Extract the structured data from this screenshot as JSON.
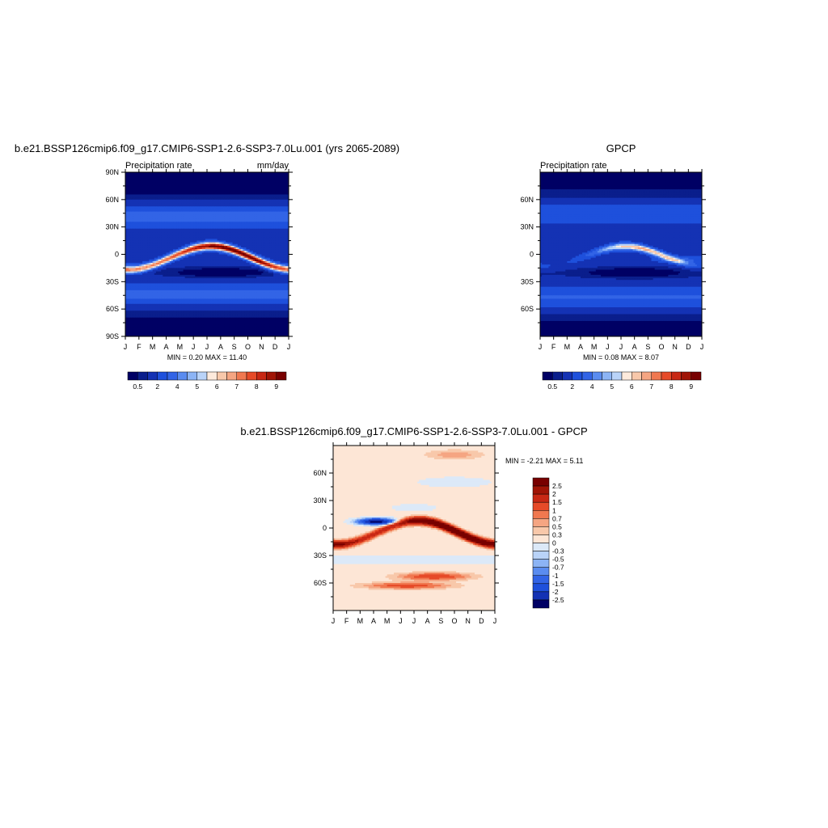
{
  "chart_data": [
    {
      "type": "heatmap",
      "title": "b.e21.BSSP126cmip6.f09_g17.CMIP6-SSP1-2.6-SSP3-7.0Lu.001 (yrs 2065-2089)",
      "left_label": "Precipitation rate",
      "right_label": "mm/day",
      "x_ticks": [
        "J",
        "F",
        "M",
        "A",
        "M",
        "J",
        "J",
        "A",
        "S",
        "O",
        "N",
        "D",
        "J"
      ],
      "y_ticks": [
        "90N",
        "60N",
        "30N",
        "0",
        "30S",
        "60S",
        "90S"
      ],
      "ylim": [
        -90,
        90
      ],
      "minmax": "MIN =   0.20 MAX =  11.40",
      "colorbar": {
        "labels": [
          "0.5",
          "2",
          "4",
          "5",
          "6",
          "7",
          "8",
          "9"
        ],
        "colors": [
          "#000064",
          "#0a1e8c",
          "#1432b4",
          "#1e50dc",
          "#3264e6",
          "#5a8cf0",
          "#8cb4f5",
          "#b9d3f8",
          "#fdeadc",
          "#f8c8aa",
          "#f5a582",
          "#f07850",
          "#e64a28",
          "#c82814",
          "#a01406",
          "#780000"
        ]
      },
      "model": "model"
    },
    {
      "type": "heatmap",
      "title": "GPCP",
      "left_label": "Precipitation rate",
      "x_ticks": [
        "J",
        "F",
        "M",
        "A",
        "M",
        "J",
        "J",
        "A",
        "S",
        "O",
        "N",
        "D",
        "J"
      ],
      "y_ticks": [
        "60N",
        "30N",
        "0",
        "30S",
        "60S"
      ],
      "ylim": [
        -90,
        90
      ],
      "minmax": "MIN =   0.08 MAX =   8.07",
      "colorbar": {
        "labels": [
          "0.5",
          "2",
          "4",
          "5",
          "6",
          "7",
          "8",
          "9"
        ],
        "colors": [
          "#000064",
          "#0a1e8c",
          "#1432b4",
          "#1e50dc",
          "#3264e6",
          "#5a8cf0",
          "#8cb4f5",
          "#b9d3f8",
          "#fdeadc",
          "#f8c8aa",
          "#f5a582",
          "#f07850",
          "#e64a28",
          "#c82814",
          "#a01406",
          "#780000"
        ]
      },
      "model": "obs"
    },
    {
      "type": "heatmap",
      "title": "b.e21.BSSP126cmip6.f09_g17.CMIP6-SSP1-2.6-SSP3-7.0Lu.001 - GPCP",
      "x_ticks": [
        "J",
        "F",
        "M",
        "A",
        "M",
        "J",
        "J",
        "A",
        "S",
        "O",
        "N",
        "D",
        "J"
      ],
      "y_ticks": [
        "60N",
        "30N",
        "0",
        "30S",
        "60S"
      ],
      "ylim": [
        -90,
        90
      ],
      "minmax": "MIN =  -2.21 MAX =   5.11",
      "colorbar": {
        "labels": [
          "2.5",
          "2",
          "1.5",
          "1",
          "0.7",
          "0.5",
          "0.3",
          "0",
          "-0.3",
          "-0.5",
          "-0.7",
          "-1",
          "-1.5",
          "-2",
          "-2.5"
        ],
        "colors": [
          "#780000",
          "#a01406",
          "#c82814",
          "#e64a28",
          "#f07850",
          "#f5a582",
          "#f8c8aa",
          "#fde6d6",
          "#dce9f8",
          "#b9d3f8",
          "#8cb4f5",
          "#5a8cf0",
          "#3264e6",
          "#1e50dc",
          "#1432b4",
          "#000064"
        ]
      },
      "model": "diff"
    }
  ]
}
